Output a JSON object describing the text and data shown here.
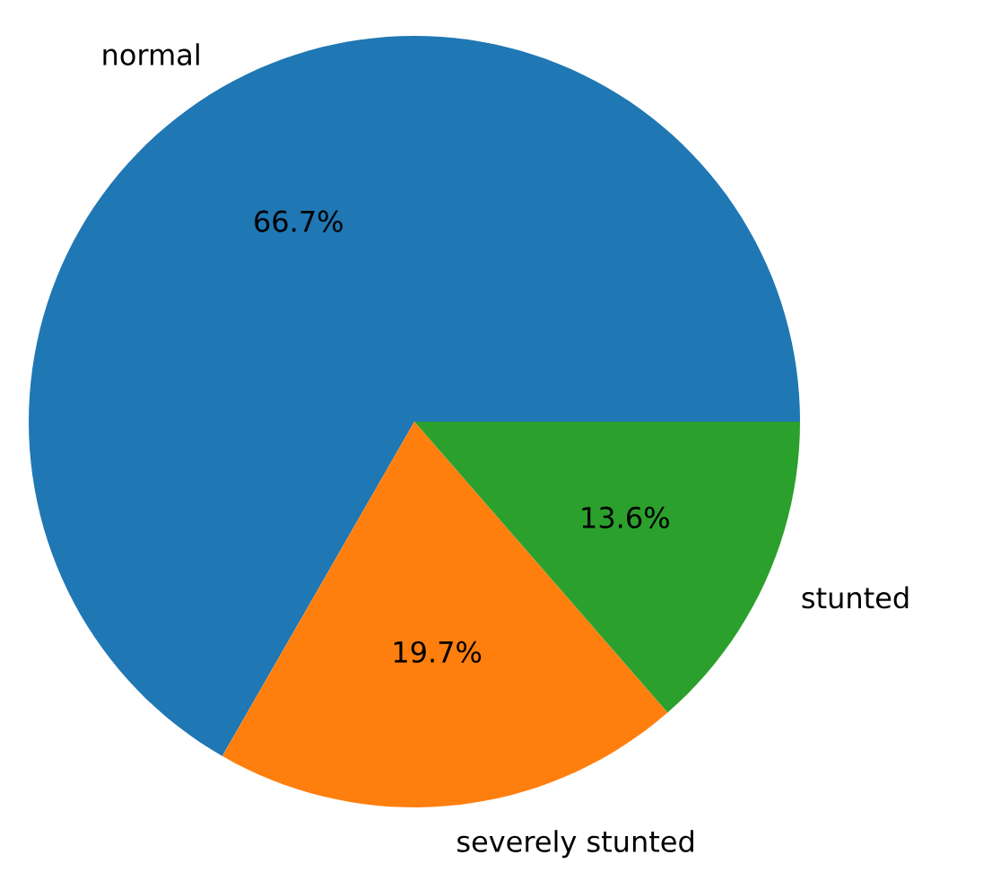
{
  "chart_data": {
    "type": "pie",
    "categories": [
      "normal",
      "severely stunted",
      "stunted"
    ],
    "values": [
      66.7,
      19.7,
      13.6
    ],
    "colors": [
      "#1f77b4",
      "#ff7f0e",
      "#2ca02c"
    ],
    "value_labels": [
      "66.7%",
      "19.7%",
      "13.6%"
    ]
  }
}
